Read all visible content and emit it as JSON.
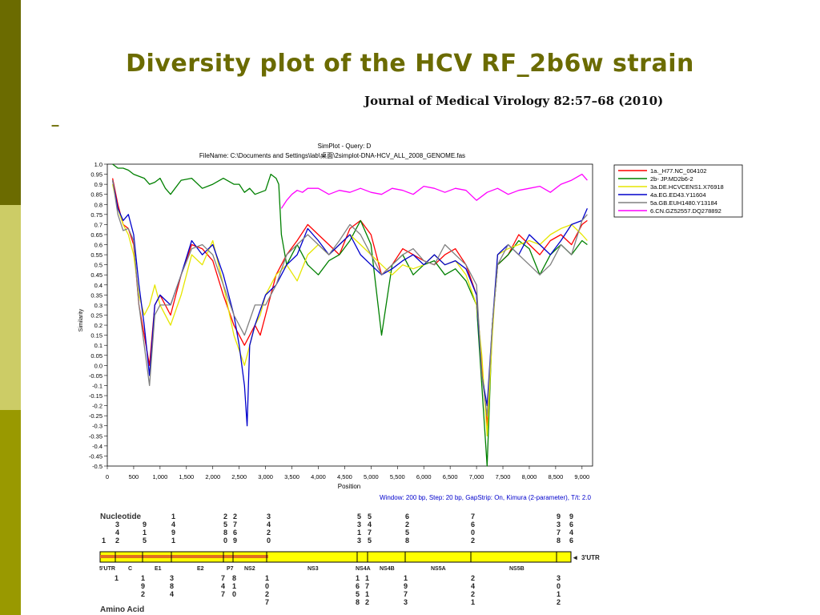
{
  "slide": {
    "title": "Diversity plot of the HCV RF_2b6w strain",
    "journal": "Journal of Medical Virology 82:57–68 (2010)",
    "bullet_dash": "–"
  },
  "colors": {
    "olive_dark": "#6b6b00",
    "olive_light": "#cccc66",
    "olive_mid": "#999900",
    "genome_bar": "#ffff00",
    "genome_stripe": "#e07020"
  },
  "chart_data": {
    "type": "line",
    "title": "SimPlot - Query: D",
    "subtitle": "FileName: C:\\Documents and Settings\\lab\\桌面\\2simplot-DNA-HCV_ALL_2008_GENOME.fas",
    "xlabel": "Position",
    "ylabel": "Similarity",
    "footer": "Window: 200 bp, Step: 20 bp, GapStrip: On, Kimura (2-parameter), T/t: 2.0",
    "xlim": [
      0,
      9200
    ],
    "ylim": [
      -0.5,
      1.0
    ],
    "x_ticks": [
      "0",
      "500",
      "1,000",
      "1,500",
      "2,000",
      "2,500",
      "3,000",
      "3,500",
      "4,000",
      "4,500",
      "5,000",
      "5,500",
      "6,000",
      "6,500",
      "7,000",
      "7,500",
      "8,000",
      "8,500",
      "9,000"
    ],
    "y_ticks": [
      "1.0",
      "0.95",
      "0.9",
      "0.85",
      "0.8",
      "0.75",
      "0.7",
      "0.65",
      "0.6",
      "0.55",
      "0.5",
      "0.45",
      "0.4",
      "0.35",
      "0.3",
      "0.25",
      "0.2",
      "0.15",
      "0.1",
      "0.05",
      "0.0",
      "-0.05",
      "-0.1",
      "-0.15",
      "-0.2",
      "-0.25",
      "-0.3",
      "-0.35",
      "-0.4",
      "-0.45",
      "-0.5"
    ],
    "legend_position": "right",
    "series": [
      {
        "name": "1a._H77.NC_004102",
        "color": "#ff0000",
        "x": [
          100,
          200,
          300,
          400,
          500,
          600,
          700,
          800,
          900,
          1000,
          1200,
          1400,
          1600,
          1800,
          2000,
          2200,
          2400,
          2600,
          2800,
          2900,
          3000,
          3200,
          3400,
          3600,
          3800,
          4000,
          4200,
          4400,
          4600,
          4800,
          5000,
          5200,
          5400,
          5600,
          5800,
          6000,
          6200,
          6400,
          6600,
          6800,
          7000,
          7100,
          7200,
          7300,
          7400,
          7600,
          7800,
          8000,
          8200,
          8400,
          8600,
          8800,
          9000,
          9100
        ],
        "y": [
          0.93,
          0.8,
          0.7,
          0.68,
          0.6,
          0.3,
          0.15,
          0.0,
          0.3,
          0.35,
          0.25,
          0.45,
          0.6,
          0.58,
          0.52,
          0.35,
          0.2,
          0.1,
          0.2,
          0.15,
          0.25,
          0.45,
          0.55,
          0.62,
          0.7,
          0.65,
          0.6,
          0.55,
          0.68,
          0.72,
          0.65,
          0.45,
          0.5,
          0.58,
          0.55,
          0.52,
          0.5,
          0.55,
          0.58,
          0.5,
          0.35,
          0.0,
          -0.3,
          0.2,
          0.5,
          0.55,
          0.65,
          0.6,
          0.55,
          0.62,
          0.65,
          0.6,
          0.7,
          0.72
        ]
      },
      {
        "name": "2b- JP.MD2b6-2",
        "color": "#008000",
        "x": [
          100,
          200,
          300,
          400,
          500,
          600,
          700,
          800,
          900,
          1000,
          1100,
          1200,
          1400,
          1600,
          1800,
          2000,
          2200,
          2400,
          2500,
          2600,
          2700,
          2800,
          3000,
          3100,
          3200,
          3250,
          3300,
          3400,
          3500,
          3600,
          3800,
          4000,
          4200,
          4400,
          4600,
          4800,
          5000,
          5200,
          5400,
          5600,
          5800,
          6000,
          6200,
          6400,
          6600,
          6800,
          7000,
          7100,
          7200,
          7300,
          7400,
          7600,
          7800,
          8000,
          8200,
          8400,
          8600,
          8800,
          9000,
          9100
        ],
        "y": [
          1.0,
          0.98,
          0.98,
          0.97,
          0.95,
          0.94,
          0.93,
          0.9,
          0.91,
          0.93,
          0.88,
          0.85,
          0.92,
          0.93,
          0.88,
          0.9,
          0.93,
          0.9,
          0.9,
          0.86,
          0.88,
          0.85,
          0.87,
          0.95,
          0.93,
          0.9,
          0.65,
          0.5,
          0.55,
          0.6,
          0.5,
          0.45,
          0.52,
          0.55,
          0.62,
          0.72,
          0.6,
          0.15,
          0.5,
          0.55,
          0.45,
          0.5,
          0.52,
          0.45,
          0.48,
          0.42,
          0.3,
          -0.1,
          -0.5,
          0.2,
          0.5,
          0.55,
          0.62,
          0.58,
          0.45,
          0.55,
          0.6,
          0.55,
          0.62,
          0.6
        ]
      },
      {
        "name": "3a.DE.HCVCENS1.X76918",
        "color": "#e6e600",
        "x": [
          100,
          200,
          300,
          400,
          500,
          600,
          700,
          800,
          900,
          1000,
          1200,
          1400,
          1600,
          1800,
          2000,
          2200,
          2400,
          2600,
          2800,
          2900,
          3000,
          3200,
          3400,
          3600,
          3800,
          4000,
          4200,
          4400,
          4600,
          4800,
          5000,
          5200,
          5400,
          5600,
          5800,
          6000,
          6200,
          6400,
          6600,
          6800,
          7000,
          7100,
          7200,
          7300,
          7400,
          7600,
          7800,
          8000,
          8200,
          8400,
          8600,
          8800,
          9000,
          9100
        ],
        "y": [
          0.9,
          0.78,
          0.7,
          0.65,
          0.55,
          0.35,
          0.25,
          0.3,
          0.4,
          0.3,
          0.2,
          0.35,
          0.55,
          0.5,
          0.62,
          0.4,
          0.15,
          0.0,
          0.2,
          0.25,
          0.35,
          0.45,
          0.5,
          0.42,
          0.55,
          0.6,
          0.55,
          0.6,
          0.65,
          0.6,
          0.55,
          0.5,
          0.45,
          0.5,
          0.48,
          0.5,
          0.55,
          0.5,
          0.52,
          0.45,
          0.3,
          0.05,
          -0.35,
          0.15,
          0.55,
          0.58,
          0.6,
          0.62,
          0.6,
          0.65,
          0.68,
          0.7,
          0.65,
          0.62
        ]
      },
      {
        "name": "4a.EG.ED43.Y11604",
        "color": "#0000cc",
        "x": [
          100,
          200,
          300,
          400,
          500,
          600,
          700,
          800,
          900,
          1000,
          1200,
          1400,
          1600,
          1800,
          2000,
          2200,
          2400,
          2500,
          2600,
          2650,
          2700,
          2800,
          3000,
          3200,
          3400,
          3600,
          3800,
          4000,
          4200,
          4400,
          4600,
          4800,
          5000,
          5200,
          5400,
          5600,
          5800,
          6000,
          6200,
          6400,
          6600,
          6800,
          7000,
          7100,
          7200,
          7300,
          7400,
          7600,
          7800,
          8000,
          8200,
          8400,
          8600,
          8800,
          9000,
          9100
        ],
        "y": [
          0.92,
          0.78,
          0.72,
          0.75,
          0.65,
          0.4,
          0.2,
          -0.05,
          0.3,
          0.35,
          0.3,
          0.45,
          0.62,
          0.55,
          0.6,
          0.45,
          0.25,
          0.1,
          -0.1,
          -0.3,
          0.1,
          0.2,
          0.35,
          0.4,
          0.5,
          0.55,
          0.68,
          0.62,
          0.55,
          0.6,
          0.65,
          0.55,
          0.5,
          0.45,
          0.48,
          0.52,
          0.55,
          0.5,
          0.55,
          0.5,
          0.52,
          0.48,
          0.35,
          -0.05,
          -0.2,
          0.2,
          0.55,
          0.6,
          0.55,
          0.65,
          0.6,
          0.55,
          0.62,
          0.7,
          0.72,
          0.78
        ]
      },
      {
        "name": "5a.GB.EUH1480.Y13184",
        "color": "#808080",
        "x": [
          100,
          200,
          300,
          400,
          500,
          600,
          700,
          800,
          900,
          1000,
          1200,
          1400,
          1600,
          1800,
          2000,
          2200,
          2400,
          2600,
          2800,
          3000,
          3200,
          3400,
          3600,
          3800,
          4000,
          4200,
          4400,
          4600,
          4800,
          5000,
          5200,
          5400,
          5600,
          5800,
          6000,
          6200,
          6400,
          6600,
          6800,
          7000,
          7100,
          7200,
          7300,
          7400,
          7600,
          7800,
          8000,
          8200,
          8400,
          8600,
          8800,
          9000,
          9100
        ],
        "y": [
          0.92,
          0.75,
          0.67,
          0.68,
          0.62,
          0.3,
          0.1,
          -0.1,
          0.25,
          0.3,
          0.3,
          0.45,
          0.58,
          0.6,
          0.55,
          0.4,
          0.25,
          0.15,
          0.3,
          0.3,
          0.4,
          0.55,
          0.6,
          0.65,
          0.6,
          0.55,
          0.62,
          0.7,
          0.65,
          0.55,
          0.45,
          0.5,
          0.55,
          0.58,
          0.52,
          0.5,
          0.6,
          0.55,
          0.5,
          0.4,
          -0.05,
          -0.25,
          0.2,
          0.5,
          0.6,
          0.55,
          0.5,
          0.45,
          0.5,
          0.6,
          0.55,
          0.72,
          0.75
        ]
      },
      {
        "name": "6.CN.GZ52557.DQ278892",
        "color": "#ff00ff",
        "x": [
          3300,
          3400,
          3500,
          3600,
          3700,
          3800,
          4000,
          4200,
          4400,
          4600,
          4800,
          5000,
          5200,
          5400,
          5600,
          5800,
          6000,
          6200,
          6400,
          6600,
          6800,
          7000,
          7200,
          7400,
          7600,
          7800,
          8000,
          8200,
          8400,
          8600,
          8800,
          9000,
          9100
        ],
        "y": [
          0.78,
          0.82,
          0.85,
          0.87,
          0.86,
          0.88,
          0.88,
          0.85,
          0.87,
          0.86,
          0.88,
          0.86,
          0.85,
          0.88,
          0.87,
          0.85,
          0.89,
          0.88,
          0.86,
          0.88,
          0.87,
          0.82,
          0.86,
          0.88,
          0.85,
          0.87,
          0.88,
          0.89,
          0.86,
          0.9,
          0.92,
          0.95,
          0.92
        ]
      }
    ]
  },
  "genome_map": {
    "nucleotide_label": "Nucleotide",
    "amino_acid_label": "Amino Acid",
    "utr3_label": "3'UTR",
    "regions": [
      "5'UTR",
      "C",
      "E1",
      "E2",
      "P7",
      "NS2",
      "NS3",
      "NS4A",
      "NS4B",
      "NS5A",
      "NS5B"
    ],
    "nucleotide_positions": [
      [
        "1"
      ],
      [
        "3",
        "4",
        "2"
      ],
      [
        "9",
        "1",
        "5"
      ],
      [
        "1",
        "4",
        "9",
        "1"
      ],
      [
        "2",
        "5",
        "8",
        "0"
      ],
      [
        "2",
        "7",
        "6",
        "9"
      ],
      [
        "3",
        "4",
        "2",
        "0"
      ],
      [
        "5",
        "3",
        "1",
        "3"
      ],
      [
        "5",
        "4",
        "7",
        "5"
      ],
      [
        "6",
        "2",
        "5",
        "8"
      ],
      [
        "7",
        "6",
        "0",
        "2"
      ],
      [
        "9",
        "3",
        "7",
        "8"
      ],
      [
        "9",
        "6",
        "4",
        "6"
      ]
    ],
    "amino_positions": [
      [
        "1"
      ],
      [
        "1",
        "9",
        "2"
      ],
      [
        "3",
        "8",
        "4"
      ],
      [
        "7",
        "4",
        "7"
      ],
      [
        "8",
        "1",
        "0"
      ],
      [
        "1",
        "0",
        "2",
        "7"
      ],
      [
        "1",
        "6",
        "5",
        "8"
      ],
      [
        "1",
        "7",
        "1",
        "2"
      ],
      [
        "1",
        "9",
        "7",
        "3"
      ],
      [
        "2",
        "4",
        "2",
        "1"
      ],
      [
        "3",
        "0",
        "1",
        "2"
      ]
    ]
  }
}
